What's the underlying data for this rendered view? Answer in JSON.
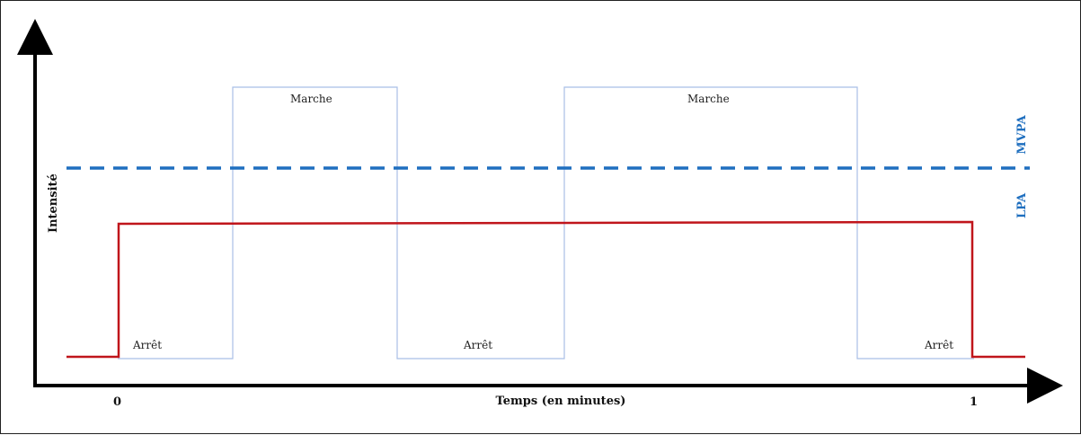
{
  "diagram": {
    "y_axis_label": "Intensité",
    "x_axis_label": "Temps (en minutes)",
    "x_ticks": [
      "0",
      "1"
    ],
    "threshold_labels": {
      "below": "LPA",
      "above": "MVPA"
    },
    "states": [
      {
        "label": "Arrêt"
      },
      {
        "label": "Marche"
      },
      {
        "label": "Arrêt"
      },
      {
        "label": "Marche"
      },
      {
        "label": "Arrêt"
      }
    ],
    "colors": {
      "axis": "#000000",
      "on_off_signal": "#a9bfe6",
      "threshold_line": "#1f6fbf",
      "mean_intensity_line": "#c0151b"
    }
  }
}
